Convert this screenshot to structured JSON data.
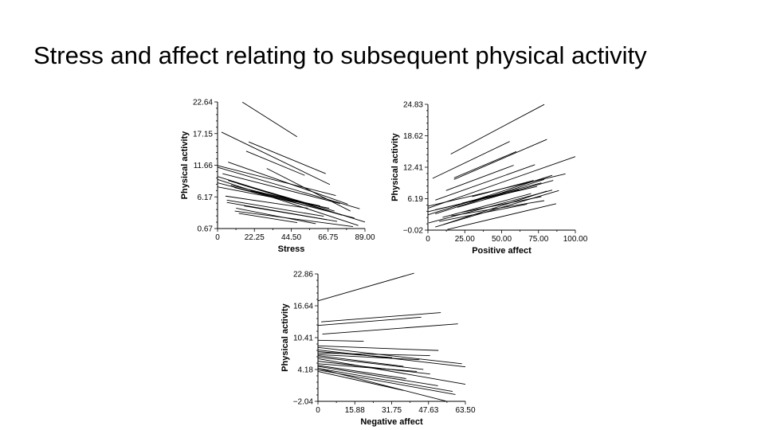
{
  "slide": {
    "title": "Stress and affect relating to subsequent physical activity"
  },
  "chart_data": [
    {
      "type": "line",
      "xlabel": "Stress",
      "ylabel": "Physical activity",
      "xlim": [
        0,
        89
      ],
      "ylim": [
        0.67,
        22.64
      ],
      "xticks": [
        "0",
        "22.25",
        "44.50",
        "66.75",
        "89.00"
      ],
      "yticks": [
        "0.67",
        "6.17",
        "11.66",
        "17.15",
        "22.64"
      ],
      "grid": false,
      "line_color": "#000000",
      "segments": [
        [
          15,
          22.6,
          48,
          16.6
        ],
        [
          2.4,
          17.4,
          67.8,
          8.3
        ],
        [
          18.8,
          15.7,
          65.3,
          10.2
        ],
        [
          17.3,
          14.1,
          52.6,
          9.9
        ],
        [
          6.4,
          12.2,
          78.6,
          4.9
        ],
        [
          0,
          11.6,
          71.4,
          6.4
        ],
        [
          0,
          11.3,
          85.8,
          4.1
        ],
        [
          29.7,
          11.1,
          80.2,
          3.7
        ],
        [
          0,
          9.7,
          89,
          1.8
        ],
        [
          0,
          9.2,
          85,
          1.2
        ],
        [
          0,
          8.6,
          82.6,
          2.5
        ],
        [
          0,
          7.9,
          67.4,
          4.2
        ],
        [
          6.4,
          9.0,
          70.6,
          3.7
        ],
        [
          12,
          8.5,
          75,
          3.0
        ],
        [
          8,
          8.2,
          60,
          4.6
        ],
        [
          14,
          7.5,
          56,
          4.8
        ],
        [
          10,
          7.8,
          68,
          3.6
        ],
        [
          4.8,
          6.3,
          54.5,
          4.2
        ],
        [
          5.6,
          5.6,
          64.1,
          2.8
        ],
        [
          5.6,
          5.2,
          72.2,
          1.9
        ],
        [
          11.2,
          4.2,
          59.3,
          1.5
        ],
        [
          12.8,
          3.3,
          48.1,
          1.7
        ],
        [
          10.4,
          3.7,
          81.8,
          1.0
        ],
        [
          16,
          4.6,
          66,
          2.2
        ],
        [
          20,
          7.2,
          62,
          4.6
        ],
        [
          3,
          10.2,
          74,
          5.0
        ]
      ]
    },
    {
      "type": "line",
      "xlabel": "Positive affect",
      "ylabel": "Physical activity",
      "xlim": [
        0,
        100
      ],
      "ylim": [
        -0.02,
        24.83
      ],
      "xticks": [
        "0",
        "25.00",
        "50.00",
        "75.00",
        "100.00"
      ],
      "yticks": [
        "−0.02",
        "6.19",
        "12.41",
        "18.62",
        "24.83"
      ],
      "grid": false,
      "line_color": "#000000",
      "segments": [
        [
          15.5,
          15.0,
          78.9,
          24.8
        ],
        [
          3.2,
          10.2,
          55.5,
          17.5
        ],
        [
          17.7,
          10.0,
          80.7,
          17.9
        ],
        [
          17.7,
          10.3,
          60,
          15.5
        ],
        [
          12.3,
          7.8,
          58.2,
          12.8
        ],
        [
          0,
          4.3,
          100,
          14.5
        ],
        [
          5,
          5.9,
          72.6,
          12.9
        ],
        [
          0,
          4.7,
          93.3,
          11.1
        ],
        [
          0,
          3.0,
          84.3,
          10.8
        ],
        [
          5,
          3.2,
          78.9,
          10.0
        ],
        [
          0.5,
          1.4,
          84.3,
          7.9
        ],
        [
          5,
          0.6,
          88.8,
          7.8
        ],
        [
          10.5,
          1.1,
          80.7,
          7.7
        ],
        [
          13.2,
          0.1,
          87,
          5.2
        ],
        [
          7.7,
          1.7,
          67.2,
          5.1
        ],
        [
          15.9,
          2.8,
          78.9,
          5.8
        ],
        [
          23,
          3.5,
          77,
          6.6
        ],
        [
          30,
          6.6,
          71.7,
          9.8
        ],
        [
          23,
          5.3,
          77,
          9.3
        ],
        [
          5,
          4.0,
          74,
          8.6
        ],
        [
          10,
          2.5,
          70,
          7.2
        ],
        [
          20,
          4.5,
          85,
          9.8
        ],
        [
          0,
          3.6,
          62,
          8.0
        ]
      ]
    },
    {
      "type": "line",
      "xlabel": "Negative affect",
      "ylabel": "Physical activity",
      "xlim": [
        0,
        63.5
      ],
      "ylim": [
        -2.04,
        22.86
      ],
      "xticks": [
        "0",
        "15.88",
        "31.75",
        "47.63",
        "63.50"
      ],
      "yticks": [
        "−2.04",
        "4.18",
        "10.41",
        "16.64",
        "22.86"
      ],
      "grid": false,
      "line_color": "#000000",
      "segments": [
        [
          0,
          17.6,
          41.4,
          23.0
        ],
        [
          1.4,
          13.5,
          52.9,
          15.3
        ],
        [
          0,
          12.8,
          44.5,
          14.4
        ],
        [
          1.9,
          11.1,
          60.3,
          13.1
        ],
        [
          0,
          9.9,
          19.7,
          9.7
        ],
        [
          0,
          8.8,
          51.9,
          7.9
        ],
        [
          0,
          8.5,
          62,
          5.3
        ],
        [
          0,
          8.0,
          63.5,
          4.7
        ],
        [
          0,
          7.4,
          48.3,
          6.9
        ],
        [
          0,
          7.1,
          43.7,
          6.1
        ],
        [
          0,
          6.6,
          45.4,
          4.2
        ],
        [
          0,
          6.3,
          63.5,
          1.3
        ],
        [
          0,
          5.8,
          48.3,
          3.3
        ],
        [
          0,
          5.3,
          42.6,
          3.8
        ],
        [
          0,
          4.8,
          51.7,
          1.0
        ],
        [
          0,
          4.4,
          58,
          -0.1
        ],
        [
          0,
          4.1,
          59.2,
          -0.7
        ],
        [
          0,
          3.8,
          36.8,
          0.1
        ],
        [
          0,
          4.4,
          55.1,
          -2.0
        ],
        [
          0,
          6.9,
          36.8,
          4.8
        ],
        [
          0,
          7.7,
          32,
          6.5
        ],
        [
          0,
          5.0,
          38,
          2.4
        ]
      ]
    }
  ]
}
